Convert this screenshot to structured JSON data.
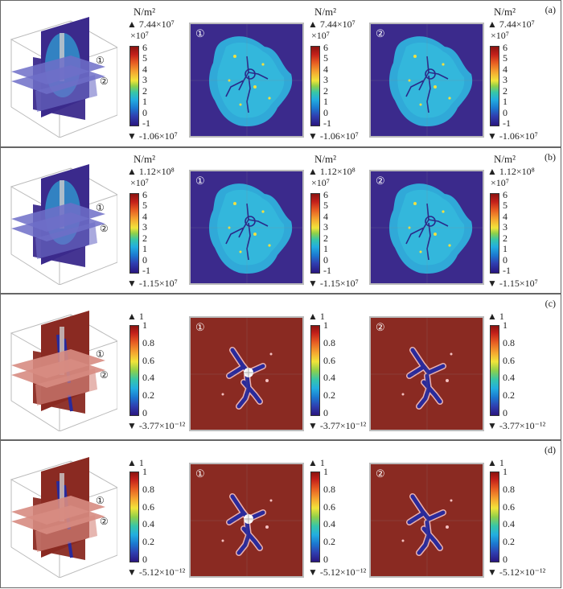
{
  "panels": [
    {
      "tag": "(a)",
      "kind": "stress",
      "unit": "N/m²",
      "colorbar": {
        "max": "▲ 7.44×10⁷",
        "multiplier": "×10⁷",
        "min": "▼ -1.06×10⁷",
        "ticks": [
          "6",
          "5",
          "4",
          "3",
          "2",
          "1",
          "0",
          "-1"
        ]
      },
      "plane_labels": [
        "①",
        "②"
      ],
      "slices": [
        "①",
        "②"
      ]
    },
    {
      "tag": "(b)",
      "kind": "stress",
      "unit": "N/m²",
      "colorbar": {
        "max": "▲ 1.12×10⁸",
        "multiplier": "×10⁷",
        "min": "▼ -1.15×10⁷",
        "ticks": [
          "6",
          "5",
          "4",
          "3",
          "2",
          "1",
          "0",
          "-1"
        ]
      },
      "plane_labels": [
        "①",
        "②"
      ],
      "slices": [
        "①",
        "②"
      ]
    },
    {
      "tag": "(c)",
      "kind": "damage",
      "unit": "",
      "colorbar": {
        "max": "▲ 1",
        "multiplier": "",
        "min": "▼ -3.77×10⁻¹²",
        "ticks": [
          "1",
          "0.8",
          "0.6",
          "0.4",
          "0.2",
          "0"
        ]
      },
      "plane_labels": [
        "①",
        "②"
      ],
      "slices": [
        "①",
        "②"
      ]
    },
    {
      "tag": "(d)",
      "kind": "damage",
      "unit": "",
      "colorbar": {
        "max": "▲ 1",
        "multiplier": "",
        "min": "▼ -5.12×10⁻¹²",
        "ticks": [
          "1",
          "0.8",
          "0.6",
          "0.4",
          "0.2",
          "0"
        ]
      },
      "plane_labels": [
        "①",
        "②"
      ],
      "slices": [
        "①",
        "②"
      ]
    }
  ],
  "colors": {
    "stress_bg": "#3b2a8c",
    "stress_blob": "#2fb0dc",
    "damage_bg": "#8a2a22",
    "crack": "#2a2a9a"
  }
}
